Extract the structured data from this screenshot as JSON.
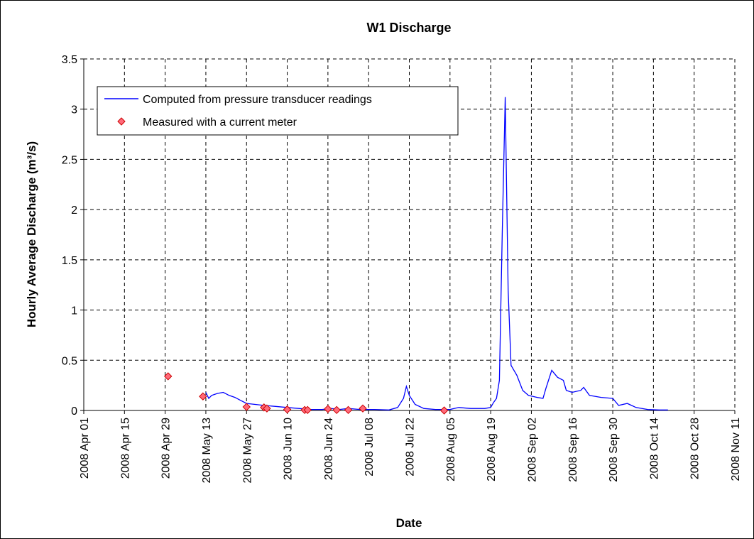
{
  "chart_data": {
    "type": "line",
    "title": "W1 Discharge",
    "x_label": "Date",
    "y_label": "Hourly Average Discharge (m³/s)",
    "xlim": [
      "2008-04-01",
      "2008-11-11"
    ],
    "xticks": [
      {
        "value": "2008-04-01",
        "label": "2008 Apr 01"
      },
      {
        "value": "2008-04-15",
        "label": "2008 Apr 15"
      },
      {
        "value": "2008-04-29",
        "label": "2008 Apr 29"
      },
      {
        "value": "2008-05-13",
        "label": "2008 May 13"
      },
      {
        "value": "2008-05-27",
        "label": "2008 May 27"
      },
      {
        "value": "2008-06-10",
        "label": "2008 Jun 10"
      },
      {
        "value": "2008-06-24",
        "label": "2008 Jun 24"
      },
      {
        "value": "2008-07-08",
        "label": "2008 Jul 08"
      },
      {
        "value": "2008-07-22",
        "label": "2008 Jul 22"
      },
      {
        "value": "2008-08-05",
        "label": "2008 Aug 05"
      },
      {
        "value": "2008-08-19",
        "label": "2008 Aug 19"
      },
      {
        "value": "2008-09-02",
        "label": "2008 Sep 02"
      },
      {
        "value": "2008-09-16",
        "label": "2008 Sep 16"
      },
      {
        "value": "2008-09-30",
        "label": "2008 Sep 30"
      },
      {
        "value": "2008-10-14",
        "label": "2008 Oct 14"
      },
      {
        "value": "2008-10-28",
        "label": "2008 Oct 28"
      },
      {
        "value": "2008-11-11",
        "label": "2008 Nov 11"
      }
    ],
    "ylim": [
      0,
      3.5
    ],
    "yticks": [
      0,
      0.5,
      1,
      1.5,
      2,
      2.5,
      3,
      3.5
    ],
    "grid": true,
    "legend": "top-left",
    "series": [
      {
        "name": "Computed from pressure transducer readings",
        "type": "line",
        "color": "#0000ff",
        "x": [
          "2008-05-13",
          "2008-05-14",
          "2008-05-15",
          "2008-05-17",
          "2008-05-19",
          "2008-05-21",
          "2008-05-23",
          "2008-05-25",
          "2008-05-27",
          "2008-05-30",
          "2008-06-02",
          "2008-06-06",
          "2008-06-10",
          "2008-06-14",
          "2008-06-18",
          "2008-06-22",
          "2008-06-25",
          "2008-06-28",
          "2008-07-01",
          "2008-07-05",
          "2008-07-10",
          "2008-07-15",
          "2008-07-18",
          "2008-07-20",
          "2008-07-21",
          "2008-07-22",
          "2008-07-24",
          "2008-07-27",
          "2008-07-31",
          "2008-08-05",
          "2008-08-08",
          "2008-08-12",
          "2008-08-17",
          "2008-08-19",
          "2008-08-20",
          "2008-08-21",
          "2008-08-22",
          "2008-08-23",
          "2008-08-24",
          "2008-08-25",
          "2008-08-26",
          "2008-08-28",
          "2008-08-30",
          "2008-09-01",
          "2008-09-04",
          "2008-09-06",
          "2008-09-07",
          "2008-09-09",
          "2008-09-11",
          "2008-09-13",
          "2008-09-14",
          "2008-09-16",
          "2008-09-19",
          "2008-09-20",
          "2008-09-22",
          "2008-09-26",
          "2008-09-30",
          "2008-10-02",
          "2008-10-05",
          "2008-10-08",
          "2008-10-12",
          "2008-10-16",
          "2008-10-19"
        ],
        "values": [
          0.18,
          0.12,
          0.15,
          0.17,
          0.18,
          0.15,
          0.13,
          0.1,
          0.07,
          0.06,
          0.05,
          0.04,
          0.03,
          0.02,
          0.01,
          0.01,
          0.02,
          0.01,
          0.02,
          0.01,
          0.01,
          0.005,
          0.03,
          0.12,
          0.24,
          0.15,
          0.06,
          0.02,
          0.01,
          0.01,
          0.03,
          0.02,
          0.02,
          0.03,
          0.08,
          0.12,
          0.3,
          1.8,
          3.12,
          1.2,
          0.45,
          0.35,
          0.2,
          0.15,
          0.13,
          0.12,
          0.22,
          0.4,
          0.33,
          0.3,
          0.2,
          0.18,
          0.2,
          0.23,
          0.15,
          0.13,
          0.12,
          0.05,
          0.07,
          0.03,
          0.01,
          0.005,
          0.005
        ]
      },
      {
        "name": "Measured with a current meter",
        "type": "scatter",
        "color": "#ff6a7a",
        "x": [
          "2008-04-30",
          "2008-05-12",
          "2008-05-27",
          "2008-06-02",
          "2008-06-03",
          "2008-06-10",
          "2008-06-16",
          "2008-06-17",
          "2008-06-24",
          "2008-06-27",
          "2008-07-01",
          "2008-07-06",
          "2008-08-03"
        ],
        "values": [
          0.34,
          0.14,
          0.035,
          0.03,
          0.02,
          0.01,
          0.005,
          0.005,
          0.015,
          0.005,
          0.005,
          0.02,
          0
        ]
      }
    ]
  }
}
